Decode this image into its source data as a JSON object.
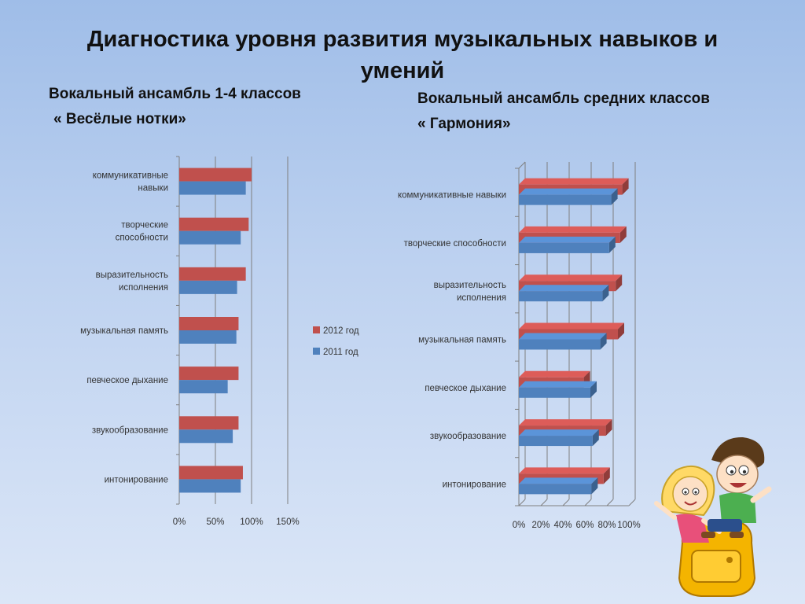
{
  "title": "Диагностика уровня развития музыкальных навыков и умений",
  "left": {
    "line1": "Вокальный ансамбль 1-4 классов",
    "line2": "« Весёлые нотки»"
  },
  "right": {
    "line1": "Вокальный ансамбль средних классов",
    "line2": "« Гармония»"
  },
  "colors": {
    "series_2012": "#c0504d",
    "series_2011": "#4f81bd",
    "grid": "#7f7f7f"
  },
  "chart_data": [
    {
      "type": "bar",
      "orientation": "horizontal",
      "categories": [
        [
          "коммуникативные",
          "навыки"
        ],
        [
          "творческие",
          "способности"
        ],
        [
          "выразительность",
          "исполнения"
        ],
        [
          "музыкальная память"
        ],
        [
          "певческое дыхание"
        ],
        [
          "звукообразование"
        ],
        [
          "интонирование"
        ]
      ],
      "series": [
        {
          "name": "2012 год",
          "values": [
            100,
            96,
            92,
            82,
            82,
            82,
            88
          ]
        },
        {
          "name": "2011 год",
          "values": [
            92,
            85,
            80,
            79,
            67,
            74,
            85
          ]
        }
      ],
      "xticks": [
        "0%",
        "50%",
        "100%",
        "150%"
      ],
      "xlim": [
        0,
        150
      ],
      "grid": true,
      "legend": "right"
    },
    {
      "type": "bar",
      "orientation": "horizontal",
      "style": "3d",
      "categories": [
        [
          "коммуникативные навыки"
        ],
        [
          "творческие способности"
        ],
        [
          "выразительность",
          "исполнения"
        ],
        [
          "музыкальная память"
        ],
        [
          "певческое дыхание"
        ],
        [
          "звукообразование"
        ],
        [
          "интонирование"
        ]
      ],
      "series": [
        {
          "name": "2012 год",
          "values": [
            94,
            92,
            88,
            90,
            59,
            79,
            77
          ]
        },
        {
          "name": "2011 год",
          "values": [
            84,
            82,
            76,
            74,
            65,
            67,
            66
          ]
        }
      ],
      "xticks": [
        "0%",
        "20%",
        "40%",
        "60%",
        "80%",
        "100%"
      ],
      "xlim": [
        0,
        100
      ],
      "grid": true,
      "legend": "none"
    }
  ]
}
